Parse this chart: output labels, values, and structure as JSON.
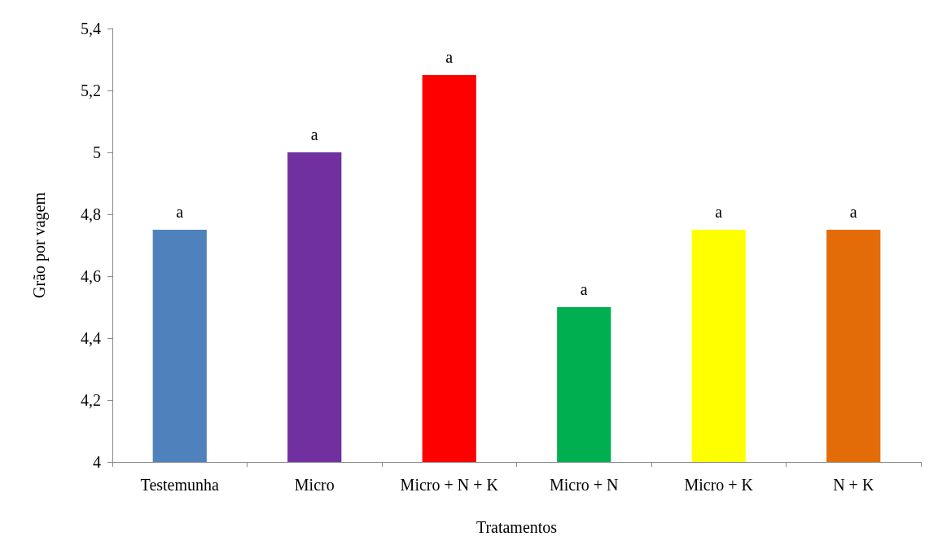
{
  "chart_data": {
    "type": "bar",
    "xlabel": "Tratamentos",
    "ylabel": "Grão por vagem",
    "categories": [
      "Testemunha",
      "Micro",
      "Micro + N + K",
      "Micro + N",
      "Micro + K",
      "N + K"
    ],
    "values": [
      4.75,
      5.0,
      5.25,
      4.5,
      4.75,
      4.75
    ],
    "colors": [
      "#4f81bd",
      "#7030a0",
      "#ff0000",
      "#00b050",
      "#ffff00",
      "#e36c09"
    ],
    "value_labels": [
      "a",
      "a",
      "a",
      "a",
      "a",
      "a"
    ],
    "ylim": [
      4,
      5.4
    ],
    "yticks": [
      4,
      {
        "value": 4.2,
        "label": "4,2"
      },
      {
        "value": 4.4,
        "label": "4,4"
      },
      {
        "value": 4.6,
        "label": "4,6"
      },
      {
        "value": 4.8,
        "label": "4,8"
      },
      5,
      {
        "value": 5.2,
        "label": "5,2"
      },
      {
        "value": 5.4,
        "label": "5,4"
      }
    ],
    "grid": false
  }
}
